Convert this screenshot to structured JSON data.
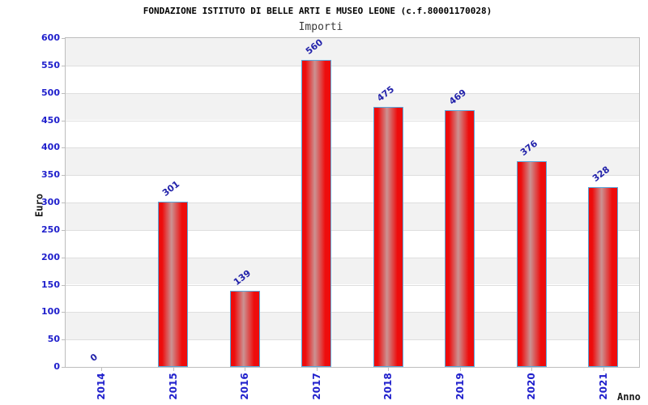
{
  "chart": {
    "title": "FONDAZIONE ISTITUTO DI BELLE ARTI E MUSEO LEONE (c.f.80001170028)",
    "subtitle": "Importi",
    "ylabel": "Euro",
    "xlabel": "Anno"
  },
  "chart_data": {
    "type": "bar",
    "title": "FONDAZIONE ISTITUTO DI BELLE ARTI E MUSEO LEONE (c.f.80001170028)",
    "subtitle": "Importi",
    "xlabel": "Anno",
    "ylabel": "Euro",
    "categories": [
      "2014",
      "2015",
      "2016",
      "2017",
      "2018",
      "2019",
      "2020",
      "2021"
    ],
    "values": [
      0,
      301,
      139,
      560,
      475,
      469,
      376,
      328
    ],
    "ylim": [
      0,
      600
    ],
    "yticks": [
      0,
      50,
      100,
      150,
      200,
      250,
      300,
      350,
      400,
      450,
      500,
      550,
      600
    ],
    "grid": true,
    "legend": false,
    "background_bands": "alternating gray/white every 50 starting gray at top"
  },
  "colors": {
    "bar_red": "#ee0c0c",
    "bar_mid_highlight": "#cb9292",
    "bar_border": "#58a8dc",
    "tick_label_blue": "#2020cc",
    "value_label_blue": "#2222aa",
    "band_gray": "#f2f2f2",
    "band_white": "#ffffff",
    "grid_line": "#dedede",
    "plot_border": "#bdbdbd",
    "title_black": "#000000",
    "subtitle_gray": "#3a3a3a"
  }
}
